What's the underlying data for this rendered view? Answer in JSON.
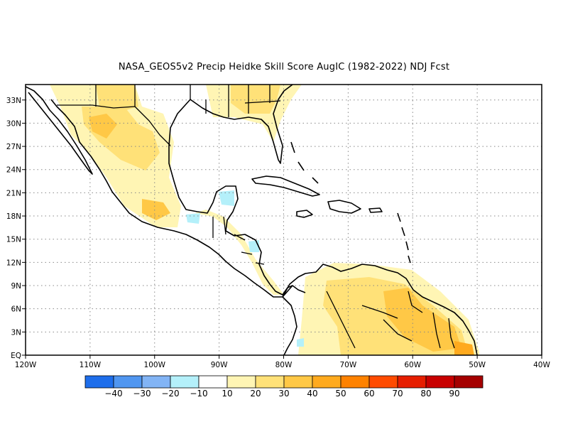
{
  "title": "NASA_GEOS5v2 Precip Heidke Skill Score AugIC (1982-2022) NDJ Fcst",
  "map": {
    "lon_range": [
      -120,
      -40
    ],
    "lat_range": [
      0,
      35
    ],
    "lon_ticks": [
      {
        "value": -120,
        "label": "120W"
      },
      {
        "value": -110,
        "label": "110W"
      },
      {
        "value": -100,
        "label": "100W"
      },
      {
        "value": -90,
        "label": "90W"
      },
      {
        "value": -80,
        "label": "80W"
      },
      {
        "value": -70,
        "label": "70W"
      },
      {
        "value": -60,
        "label": "60W"
      },
      {
        "value": -50,
        "label": "50W"
      },
      {
        "value": -40,
        "label": "40W"
      }
    ],
    "lat_ticks": [
      {
        "value": 0,
        "label": "EQ"
      },
      {
        "value": 3,
        "label": "3N"
      },
      {
        "value": 6,
        "label": "6N"
      },
      {
        "value": 9,
        "label": "9N"
      },
      {
        "value": 12,
        "label": "12N"
      },
      {
        "value": 15,
        "label": "15N"
      },
      {
        "value": 18,
        "label": "18N"
      },
      {
        "value": 21,
        "label": "21N"
      },
      {
        "value": 24,
        "label": "24N"
      },
      {
        "value": 27,
        "label": "27N"
      },
      {
        "value": 30,
        "label": "30N"
      },
      {
        "value": 33,
        "label": "33N"
      }
    ],
    "grid": true
  },
  "colorbar": {
    "colors": [
      "#1e6eeb",
      "#5096f0",
      "#82b4f5",
      "#b4f0fa",
      "#ffffff",
      "#fff5b4",
      "#ffe178",
      "#ffc846",
      "#ffaa1e",
      "#ff8200",
      "#ff4b00",
      "#e61e00",
      "#c80000",
      "#a50000"
    ],
    "labels": [
      "-40",
      "-30",
      "-20",
      "-10",
      "10",
      "20",
      "30",
      "40",
      "50",
      "60",
      "70",
      "80",
      "90"
    ]
  },
  "colors": {
    "coast": "#000000",
    "grid": "#888888"
  }
}
